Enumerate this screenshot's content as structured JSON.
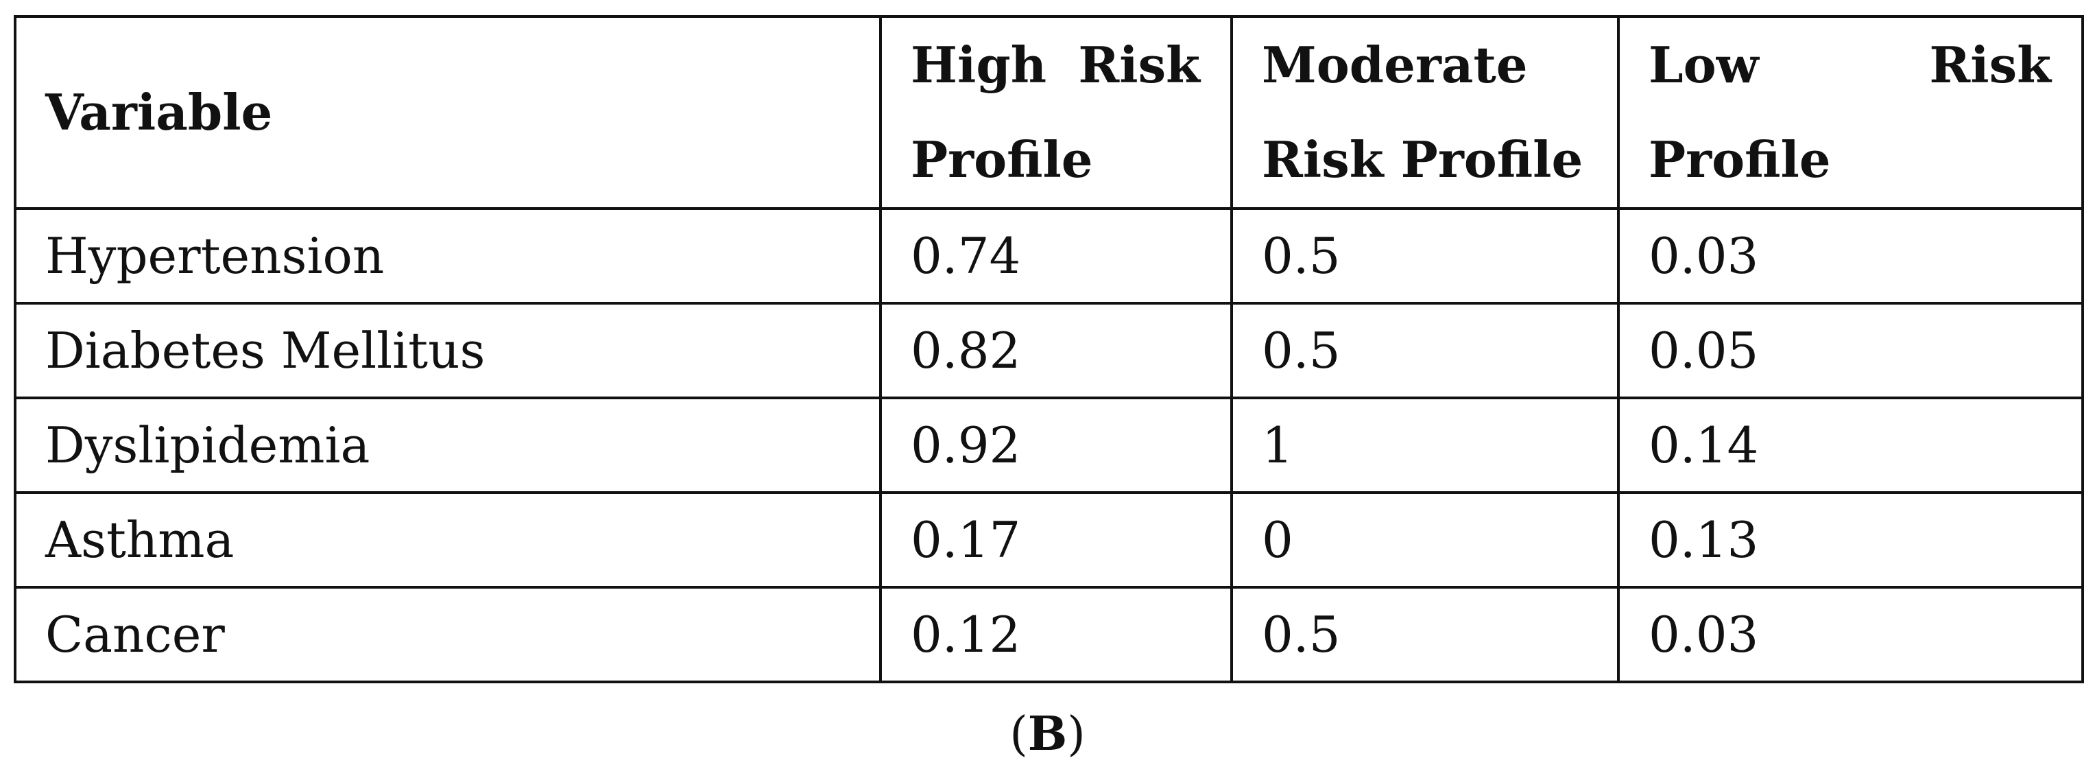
{
  "table": {
    "headers": {
      "variable": "Variable",
      "high": [
        "High Risk",
        "Profile"
      ],
      "moderate": [
        "Moderate",
        "Risk Profile"
      ],
      "low": [
        "Low Risk",
        "Profile"
      ]
    },
    "rows": [
      {
        "variable": "Hypertension",
        "high": "0.74",
        "moderate": "0.5",
        "low": "0.03"
      },
      {
        "variable": "Diabetes Mellitus",
        "high": "0.82",
        "moderate": "0.5",
        "low": "0.05"
      },
      {
        "variable": "Dyslipidemia",
        "high": "0.92",
        "moderate": "1",
        "low": "0.14"
      },
      {
        "variable": "Asthma",
        "high": "0.17",
        "moderate": "0",
        "low": "0.13"
      },
      {
        "variable": "Cancer",
        "high": "0.12",
        "moderate": "0.5",
        "low": "0.03"
      }
    ]
  },
  "caption": {
    "open": "(",
    "label": "B",
    "close": ")"
  }
}
